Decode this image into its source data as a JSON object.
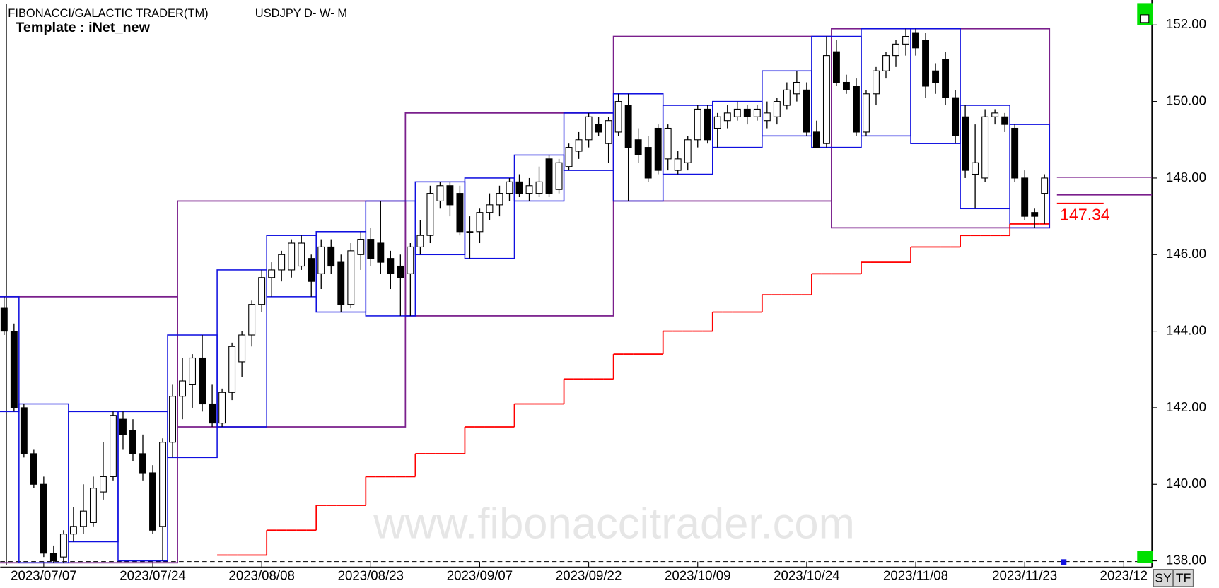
{
  "chart_data": {
    "type": "candlestick",
    "title": "FIBONACCI/GALACTIC TRADER(TM)",
    "subtitle": "USDJPY D- W- M",
    "template": "Template : iNet_new",
    "watermark": "www.fibonaccitrader.com",
    "buttons": [
      "SY",
      "TF"
    ],
    "categories": [
      null,
      null,
      null,
      null,
      "2023/07/07",
      null,
      null,
      null,
      null,
      null,
      null,
      null,
      null,
      null,
      null,
      "2023/07/24",
      null,
      null,
      null,
      null,
      null,
      null,
      null,
      null,
      null,
      null,
      "2023/08/08",
      null,
      null,
      null,
      null,
      null,
      null,
      null,
      null,
      null,
      null,
      "2023/08/23",
      null,
      null,
      null,
      null,
      null,
      null,
      null,
      null,
      null,
      null,
      "2023/09/07",
      null,
      null,
      null,
      null,
      null,
      null,
      null,
      null,
      null,
      null,
      "2023/09/22",
      null,
      null,
      null,
      null,
      null,
      null,
      null,
      null,
      null,
      null,
      "2023/10/09",
      null,
      null,
      null,
      null,
      null,
      null,
      null,
      null,
      null,
      null,
      "2023/10/24",
      null,
      null,
      null,
      null,
      null,
      null,
      null,
      null,
      null,
      null,
      "2023/11/08",
      null,
      null,
      null,
      null,
      null,
      null,
      null,
      null,
      null,
      null,
      "2023/11/23",
      null,
      null,
      null,
      null,
      null,
      null,
      null,
      null,
      null,
      "2023/12"
    ],
    "open": [
      144.6,
      144.0,
      142.0,
      140.8,
      140.0,
      138.2,
      138.1,
      138.7,
      138.9,
      139.0,
      139.8,
      140.2,
      141.7,
      141.4,
      140.8,
      140.3,
      138.9,
      141.1,
      142.3,
      142.6,
      143.3,
      142.1,
      141.6,
      142.4,
      143.2,
      143.9,
      144.7,
      145.4,
      145.6,
      145.6,
      145.7,
      145.9,
      145.5,
      146.2,
      145.8,
      144.7,
      146.0,
      146.4,
      146.3,
      145.9,
      145.7,
      145.5,
      146.2,
      146.5,
      147.4,
      147.8,
      147.6,
      146.6,
      146.6,
      147.1,
      147.3,
      147.6,
      147.9,
      147.6,
      147.6,
      148.5,
      147.7,
      148.3,
      148.7,
      149.0,
      149.4,
      148.9,
      149.2,
      149.9,
      149.0,
      148.8,
      149.3,
      148.5,
      148.2,
      148.4,
      149.0,
      149.8,
      149.3,
      149.5,
      149.6,
      149.8,
      149.6,
      149.5,
      149.6,
      149.9,
      150.2,
      150.3,
      149.2,
      148.9,
      151.3,
      150.5,
      150.4,
      149.2,
      150.2,
      150.8,
      151.2,
      151.5,
      151.8,
      151.6,
      150.8,
      151.1,
      150.1,
      149.6,
      148.1,
      148.0,
      149.6,
      149.6,
      149.3,
      148.0,
      147.1,
      147.6,
      null,
      null,
      null,
      null,
      null,
      null,
      null,
      null
    ],
    "high": [
      144.9,
      144.2,
      142.1,
      140.9,
      140.2,
      138.4,
      138.8,
      139.4,
      140.0,
      140.2,
      141.1,
      141.9,
      141.9,
      141.7,
      141.3,
      140.5,
      141.2,
      142.6,
      143.3,
      143.4,
      143.9,
      142.6,
      142.5,
      143.7,
      144.0,
      144.8,
      145.6,
      145.8,
      146.1,
      146.4,
      146.5,
      146.0,
      146.4,
      146.4,
      146.0,
      146.3,
      146.6,
      146.7,
      147.4,
      146.1,
      146.0,
      146.3,
      146.9,
      147.8,
      147.9,
      147.9,
      147.8,
      147.0,
      147.2,
      147.6,
      147.8,
      148.0,
      148.1,
      148.0,
      148.3,
      148.6,
      148.5,
      148.9,
      149.2,
      149.7,
      149.6,
      149.6,
      150.2,
      150.2,
      149.3,
      149.1,
      149.4,
      149.4,
      148.7,
      149.1,
      149.9,
      149.9,
      149.7,
      149.9,
      150.0,
      149.9,
      149.9,
      150.0,
      150.1,
      150.5,
      150.8,
      150.5,
      149.5,
      151.7,
      151.6,
      150.7,
      150.6,
      150.3,
      150.9,
      151.3,
      151.6,
      151.9,
      151.9,
      151.8,
      151.0,
      151.3,
      150.3,
      149.9,
      149.4,
      149.8,
      149.8,
      149.7,
      149.4,
      148.2,
      147.2,
      148.1,
      null,
      null,
      null,
      null,
      null,
      null,
      null,
      null
    ],
    "low": [
      143.9,
      141.9,
      140.7,
      139.9,
      138.1,
      137.95,
      137.95,
      138.5,
      138.7,
      138.9,
      139.6,
      140.1,
      140.9,
      140.6,
      140.1,
      138.7,
      138.0,
      140.7,
      141.7,
      142.0,
      141.9,
      141.5,
      141.5,
      142.2,
      142.8,
      143.6,
      144.5,
      144.9,
      145.3,
      145.4,
      145.6,
      144.9,
      145.1,
      145.5,
      144.5,
      144.6,
      145.6,
      145.7,
      145.5,
      145.1,
      144.4,
      144.4,
      146.0,
      146.3,
      147.2,
      147.0,
      146.5,
      145.9,
      146.3,
      146.9,
      147.0,
      147.4,
      147.5,
      147.4,
      147.5,
      147.5,
      147.6,
      148.2,
      148.5,
      148.8,
      149.1,
      148.4,
      149.1,
      147.4,
      148.4,
      147.9,
      148.1,
      148.2,
      148.1,
      148.2,
      148.8,
      148.9,
      148.8,
      149.3,
      149.5,
      149.4,
      149.5,
      149.3,
      149.4,
      149.8,
      150.0,
      149.1,
      148.8,
      148.8,
      150.4,
      150.2,
      149.1,
      149.1,
      149.9,
      150.6,
      150.9,
      151.2,
      151.2,
      150.1,
      150.2,
      149.9,
      148.9,
      148.0,
      147.2,
      147.9,
      149.4,
      149.2,
      147.9,
      146.9,
      146.7,
      146.8,
      null,
      null,
      null,
      null,
      null,
      null,
      null,
      null
    ],
    "close": [
      144.0,
      142.0,
      140.8,
      140.0,
      138.2,
      138.0,
      138.7,
      138.9,
      139.3,
      139.9,
      140.2,
      141.8,
      141.3,
      140.8,
      140.3,
      138.8,
      141.1,
      142.3,
      142.7,
      143.3,
      142.1,
      141.6,
      142.4,
      143.6,
      143.9,
      144.7,
      145.4,
      145.6,
      146.0,
      146.3,
      146.3,
      145.3,
      146.2,
      145.7,
      144.7,
      146.1,
      146.4,
      145.9,
      145.8,
      145.5,
      145.4,
      146.2,
      146.5,
      147.6,
      147.8,
      147.3,
      146.6,
      146.6,
      147.1,
      147.3,
      147.6,
      147.9,
      147.6,
      147.8,
      147.9,
      147.6,
      148.4,
      148.8,
      149.0,
      149.6,
      149.2,
      149.5,
      150.0,
      148.8,
      148.6,
      148.0,
      148.2,
      149.3,
      148.5,
      149.0,
      149.8,
      149.0,
      149.6,
      149.7,
      149.8,
      149.6,
      149.8,
      149.7,
      150.0,
      150.3,
      150.5,
      149.2,
      148.8,
      151.2,
      150.5,
      150.3,
      149.2,
      150.2,
      150.8,
      151.2,
      151.5,
      151.7,
      151.4,
      150.4,
      150.5,
      150.1,
      149.1,
      148.2,
      148.4,
      149.6,
      149.7,
      149.4,
      148.0,
      147.0,
      147.0,
      148.0,
      null,
      null,
      null,
      null,
      null,
      null,
      null,
      null
    ],
    "up_color": "#ffffff",
    "down_color": "#000000",
    "weekly_color": "#1010e0",
    "monthly_color": "#7a1f8c",
    "month_starts": [
      0,
      18,
      41,
      62,
      84
    ],
    "trail": {
      "color": "#ff0000",
      "values": [
        null,
        null,
        null,
        null,
        null,
        null,
        null,
        null,
        null,
        null,
        null,
        null,
        null,
        null,
        null,
        null,
        null,
        null,
        null,
        null,
        null,
        null,
        138.15,
        138.15,
        138.15,
        138.15,
        138.15,
        138.8,
        138.8,
        138.8,
        138.8,
        138.8,
        139.45,
        139.45,
        139.45,
        139.45,
        139.45,
        140.2,
        140.2,
        140.2,
        140.2,
        140.2,
        140.8,
        140.8,
        140.8,
        140.8,
        140.8,
        141.5,
        141.5,
        141.5,
        141.5,
        141.5,
        142.1,
        142.1,
        142.1,
        142.1,
        142.1,
        142.75,
        142.75,
        142.75,
        142.75,
        142.75,
        143.4,
        143.4,
        143.4,
        143.4,
        143.4,
        144,
        144,
        144,
        144,
        144,
        144.5,
        144.5,
        144.5,
        144.5,
        144.5,
        144.95,
        144.95,
        144.95,
        144.95,
        144.95,
        145.5,
        145.5,
        145.5,
        145.5,
        145.5,
        145.8,
        145.8,
        145.8,
        145.8,
        145.8,
        146.2,
        146.2,
        146.2,
        146.2,
        146.2,
        146.5,
        146.5,
        146.5,
        146.5,
        146.5,
        146.8,
        146.8,
        146.8,
        146.8,
        null,
        null,
        null,
        null,
        null,
        null,
        null,
        null
      ]
    },
    "levels": {
      "color": "#7a1f8c",
      "values": [
        148.02,
        147.56
      ]
    },
    "last_price": 147.34,
    "last_price_color": "#ff0000",
    "ylim": [
      137.94,
      152.55
    ],
    "yticks": [
      {
        "value": 138,
        "label": "138.00"
      },
      {
        "value": 140,
        "label": "140.00"
      },
      {
        "value": 142,
        "label": "142.00"
      },
      {
        "value": 144,
        "label": "144.00"
      },
      {
        "value": 146,
        "label": "146.00"
      },
      {
        "value": 148,
        "label": "148.00"
      },
      {
        "value": 150,
        "label": "150.00"
      },
      {
        "value": 152,
        "label": "152.00"
      }
    ]
  }
}
